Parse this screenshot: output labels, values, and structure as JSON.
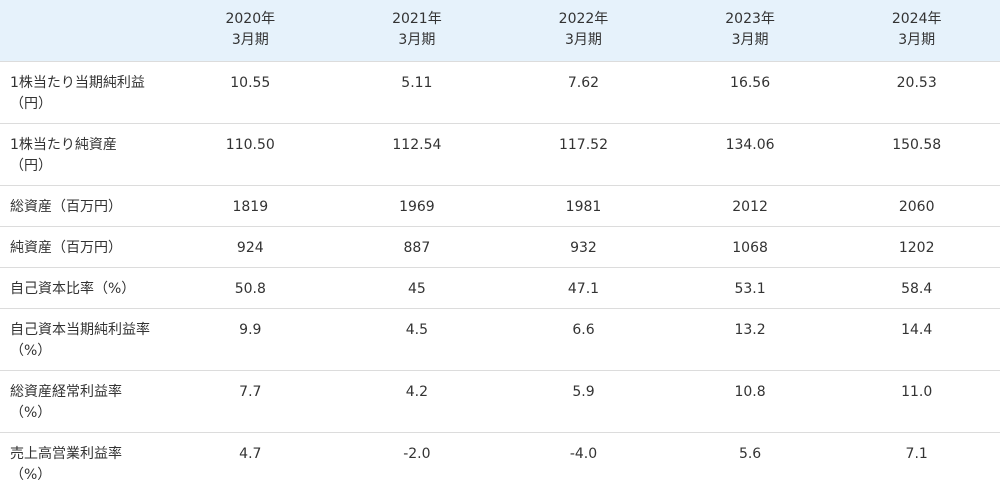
{
  "header": {
    "columns": [
      {
        "year": "2020年",
        "period": "3月期"
      },
      {
        "year": "2021年",
        "period": "3月期"
      },
      {
        "year": "2022年",
        "period": "3月期"
      },
      {
        "year": "2023年",
        "period": "3月期"
      },
      {
        "year": "2024年",
        "period": "3月期"
      }
    ]
  },
  "rows": [
    {
      "label_main": "1株当たり当期純利益",
      "label_sub": "（円）",
      "values": [
        "10.55",
        "5.11",
        "7.62",
        "16.56",
        "20.53"
      ]
    },
    {
      "label_main": "1株当たり純資産",
      "label_sub": "（円）",
      "values": [
        "110.50",
        "112.54",
        "117.52",
        "134.06",
        "150.58"
      ]
    },
    {
      "label_main": "総資産（百万円）",
      "label_sub": "",
      "values": [
        "1819",
        "1969",
        "1981",
        "2012",
        "2060"
      ]
    },
    {
      "label_main": "純資産（百万円）",
      "label_sub": "",
      "values": [
        "924",
        "887",
        "932",
        "1068",
        "1202"
      ]
    },
    {
      "label_main": "自己資本比率（%）",
      "label_sub": "",
      "values": [
        "50.8",
        "45",
        "47.1",
        "53.1",
        "58.4"
      ]
    },
    {
      "label_main": "自己資本当期純利益率",
      "label_sub": "（%）",
      "values": [
        "9.9",
        "4.5",
        "6.6",
        "13.2",
        "14.4"
      ]
    },
    {
      "label_main": "総資産経常利益率",
      "label_sub": "（%）",
      "values": [
        "7.7",
        "4.2",
        "5.9",
        "10.8",
        "11.0"
      ]
    },
    {
      "label_main": "売上高営業利益率",
      "label_sub": "（%）",
      "values": [
        "4.7",
        "-2.0",
        "-4.0",
        "5.6",
        "7.1"
      ]
    }
  ]
}
